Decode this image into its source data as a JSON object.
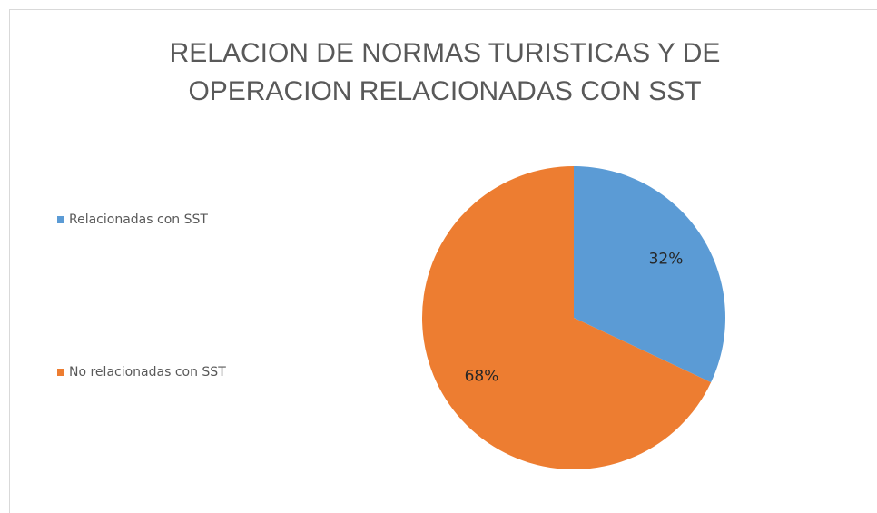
{
  "chart_data": {
    "type": "pie",
    "title": [
      "RELACION DE NORMAS TURISTICAS Y DE",
      "OPERACION RELACIONADAS CON SST"
    ],
    "categories": [
      "Relacionadas con SST",
      "No relacionadas con SST"
    ],
    "values": [
      32,
      68
    ],
    "value_labels": [
      "32%",
      "68%"
    ],
    "colors": [
      "#5b9bd5",
      "#ed7d31"
    ],
    "legend": "left"
  }
}
